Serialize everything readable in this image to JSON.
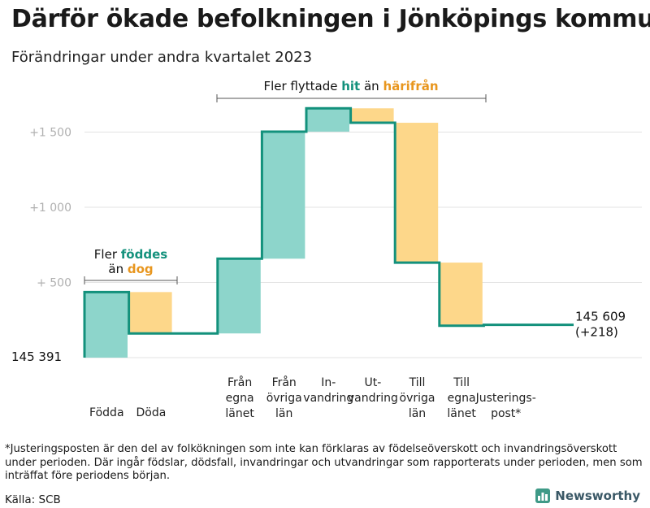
{
  "title": "Därför ökade befolkningen i Jönköpings kommun",
  "subtitle": "Förändringar under andra kvartalet 2023",
  "footnote": "*Justeringsposten är den del av folkökningen som inte kan förklaras av födelseöverskott och invandringsöverskott under perioden. Där ingår födslar, dödsfall, invandringar och utvandringar som rapporterats under perioden, men som inträffat före periodens början.",
  "source": "Källa: SCB",
  "logo_text": "Newsworthy",
  "colors": {
    "increase": "#8dd5cb",
    "decrease": "#fdd78a",
    "line": "#13917c",
    "accent_orange": "#e8961e",
    "grid": "#e3e3e3"
  },
  "chart_data": {
    "type": "waterfall",
    "start": {
      "value": 145391,
      "label": "145 391"
    },
    "end": {
      "value": 145609,
      "label_value": "145 609",
      "label_change": "(+218)"
    },
    "baseline_offset": 145391,
    "y_ticks": [
      {
        "value": 500,
        "label": "+ 500"
      },
      {
        "value": 1000,
        "label": "+1 000"
      },
      {
        "value": 1500,
        "label": "+1 500"
      }
    ],
    "grid": true,
    "steps": [
      {
        "category": [
          "Födda"
        ],
        "change": 436,
        "kind": "increase"
      },
      {
        "category": [
          "Döda"
        ],
        "change": -275,
        "kind": "decrease"
      },
      {
        "category": [
          "Från",
          "egna",
          "länet"
        ],
        "change": 0,
        "kind": "spacer"
      },
      {
        "category": [
          "Från",
          "egna",
          "länet"
        ],
        "change": 497,
        "kind": "increase"
      },
      {
        "category": [
          "Från",
          "övriga",
          "län"
        ],
        "change": 845,
        "kind": "increase"
      },
      {
        "category": [
          "In-",
          "vandring"
        ],
        "change": 155,
        "kind": "increase"
      },
      {
        "category": [
          "Ut-",
          "vandring"
        ],
        "change": -96,
        "kind": "decrease"
      },
      {
        "category": [
          "Till",
          "övriga",
          "län"
        ],
        "change": -930,
        "kind": "decrease"
      },
      {
        "category": [
          "Till",
          "egna",
          "länet"
        ],
        "change": -420,
        "kind": "decrease"
      },
      {
        "category": [
          "Justerings-",
          "post*"
        ],
        "change": 6,
        "kind": "increase"
      }
    ],
    "annotations": {
      "births": {
        "line1_pre": "Fler ",
        "line1_hl": "föddes",
        "line2_pre": "än ",
        "line2_hl": "dog"
      },
      "migration": {
        "pre": "Fler flyttade ",
        "hl1": "hit",
        "mid": " än ",
        "hl2": "härifrån"
      }
    }
  }
}
